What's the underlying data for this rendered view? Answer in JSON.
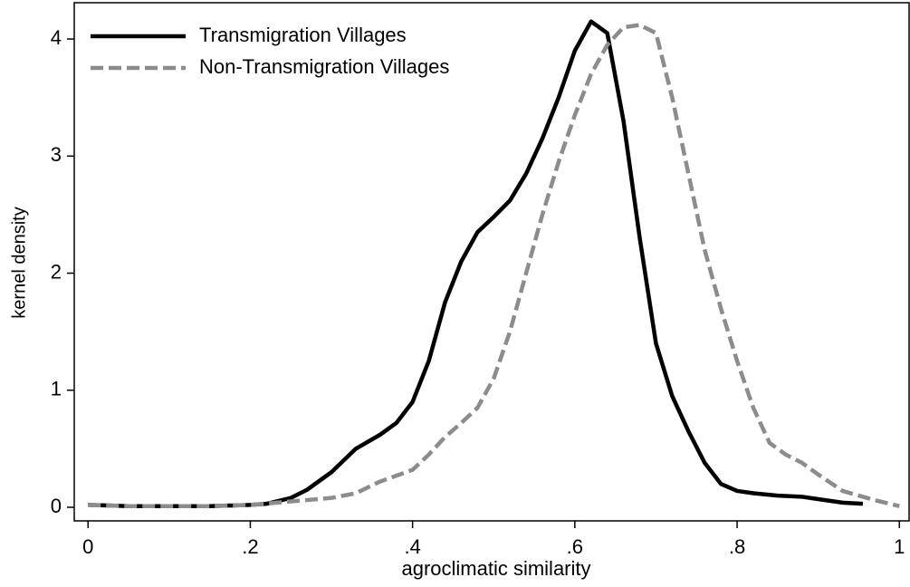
{
  "chart_data": {
    "type": "line",
    "xlabel": "agroclimatic similarity",
    "ylabel": "kernel density",
    "xlim": [
      -0.017,
      1.012
    ],
    "ylim": [
      -0.116,
      4.31
    ],
    "xticks": [
      0,
      {
        "value": 0.2,
        "label": ".2"
      },
      {
        "value": 0.4,
        "label": ".4"
      },
      {
        "value": 0.6,
        "label": ".6"
      },
      {
        "value": 0.8,
        "label": ".8"
      },
      1
    ],
    "yticks": [
      0,
      1,
      2,
      3,
      4
    ],
    "grid": false,
    "legend": "upper left",
    "series": [
      {
        "name": "Transmigration Villages",
        "color": "#000000",
        "linestyle": "solid",
        "x": [
          0,
          0.05,
          0.1,
          0.15,
          0.2,
          0.22,
          0.25,
          0.27,
          0.3,
          0.33,
          0.36,
          0.38,
          0.4,
          0.42,
          0.44,
          0.46,
          0.48,
          0.5,
          0.52,
          0.54,
          0.56,
          0.58,
          0.6,
          0.62,
          0.64,
          0.66,
          0.68,
          0.7,
          0.72,
          0.74,
          0.76,
          0.78,
          0.8,
          0.82,
          0.85,
          0.88,
          0.9,
          0.93,
          0.955
        ],
        "values": [
          0.02,
          0.01,
          0.01,
          0.01,
          0.02,
          0.03,
          0.08,
          0.15,
          0.3,
          0.5,
          0.62,
          0.72,
          0.9,
          1.25,
          1.75,
          2.1,
          2.35,
          2.48,
          2.62,
          2.85,
          3.15,
          3.5,
          3.9,
          4.15,
          4.05,
          3.3,
          2.3,
          1.4,
          0.95,
          0.65,
          0.38,
          0.2,
          0.14,
          0.12,
          0.1,
          0.09,
          0.07,
          0.04,
          0.03
        ]
      },
      {
        "name": "Non-Transmigration Villages",
        "color": "#8c8c8c",
        "linestyle": "dashed",
        "x": [
          0,
          0.05,
          0.1,
          0.15,
          0.2,
          0.25,
          0.3,
          0.33,
          0.36,
          0.38,
          0.4,
          0.42,
          0.44,
          0.46,
          0.48,
          0.5,
          0.52,
          0.54,
          0.56,
          0.58,
          0.6,
          0.62,
          0.64,
          0.66,
          0.68,
          0.7,
          0.72,
          0.74,
          0.76,
          0.78,
          0.8,
          0.82,
          0.84,
          0.86,
          0.88,
          0.9,
          0.93,
          0.95,
          0.97,
          1.0
        ],
        "values": [
          0.02,
          0.01,
          0.01,
          0.01,
          0.02,
          0.05,
          0.08,
          0.12,
          0.22,
          0.27,
          0.32,
          0.45,
          0.6,
          0.72,
          0.85,
          1.1,
          1.5,
          2.0,
          2.5,
          2.95,
          3.35,
          3.7,
          3.95,
          4.1,
          4.12,
          4.05,
          3.5,
          2.85,
          2.2,
          1.7,
          1.25,
          0.85,
          0.55,
          0.45,
          0.38,
          0.28,
          0.14,
          0.1,
          0.06,
          0.01
        ]
      }
    ]
  }
}
